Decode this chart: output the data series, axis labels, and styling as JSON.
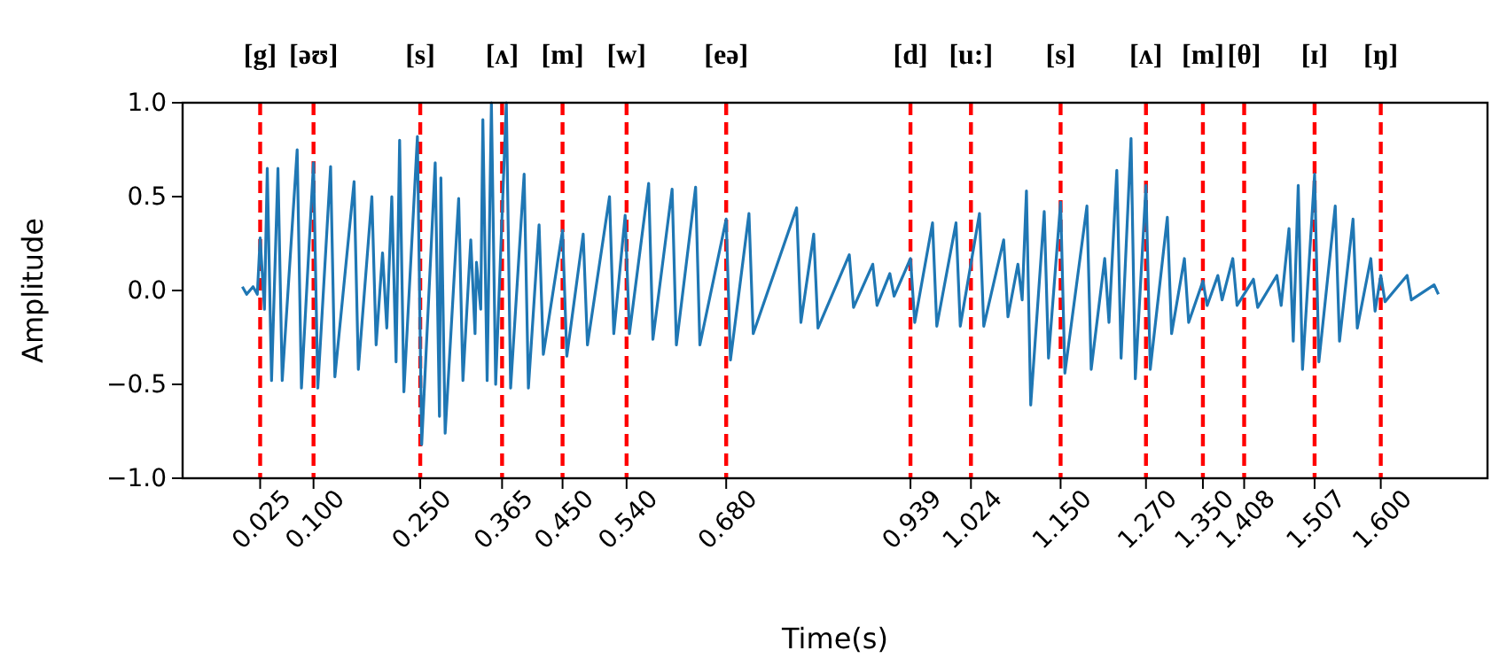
{
  "chart_data": {
    "type": "line",
    "xlabel": "Time(s)",
    "ylabel": "Amplitude",
    "xlim": [
      -0.084,
      1.75
    ],
    "ylim": [
      -1,
      1
    ],
    "xticks": [
      0.025,
      {
        "value": 0.1,
        "label": "0.100"
      },
      {
        "value": 0.25,
        "label": "0.250"
      },
      0.365,
      {
        "value": 0.45,
        "label": "0.450"
      },
      {
        "value": 0.54,
        "label": "0.540"
      },
      {
        "value": 0.68,
        "label": "0.680"
      },
      0.939,
      1.024,
      {
        "value": 1.15,
        "label": "1.150"
      },
      {
        "value": 1.27,
        "label": "1.270"
      },
      {
        "value": 1.35,
        "label": "1.350"
      },
      1.408,
      1.507,
      {
        "value": 1.6,
        "label": "1.600"
      }
    ],
    "yticks": [
      {
        "value": -1,
        "label": "−1.0"
      },
      {
        "value": -0.5,
        "label": "−0.5"
      },
      {
        "value": 0,
        "label": "0.0"
      },
      {
        "value": 0.5,
        "label": "0.5"
      },
      {
        "value": 1,
        "label": "1.0"
      }
    ],
    "series": [
      {
        "color": "#1f77b4",
        "x": [
          0,
          0.006,
          0.015,
          0.021,
          0.025,
          0.031,
          0.035,
          0.041,
          0.05,
          0.056,
          0.077,
          0.083,
          0.1,
          0.106,
          0.124,
          0.13,
          0.157,
          0.163,
          0.182,
          0.188,
          0.197,
          0.203,
          0.21,
          0.216,
          0.221,
          0.227,
          0.246,
          0.252,
          0.271,
          0.277,
          0.279,
          0.285,
          0.304,
          0.31,
          0.321,
          0.327,
          0.329,
          0.335,
          0.338,
          0.344,
          0.35,
          0.356,
          0.371,
          0.377,
          0.396,
          0.402,
          0.417,
          0.423,
          0.45,
          0.456,
          0.479,
          0.485,
          0.516,
          0.522,
          0.538,
          0.544,
          0.571,
          0.577,
          0.604,
          0.61,
          0.637,
          0.643,
          0.68,
          0.686,
          0.712,
          0.718,
          0.779,
          0.785,
          0.803,
          0.809,
          0.853,
          0.859,
          0.886,
          0.892,
          0.91,
          0.916,
          0.939,
          0.945,
          0.97,
          0.976,
          1.003,
          1.009,
          1.036,
          1.042,
          1.07,
          1.076,
          1.09,
          1.096,
          1.102,
          1.108,
          1.127,
          1.133,
          1.15,
          1.156,
          1.187,
          1.193,
          1.212,
          1.218,
          1.229,
          1.235,
          1.249,
          1.255,
          1.27,
          1.276,
          1.3,
          1.306,
          1.324,
          1.33,
          1.35,
          1.356,
          1.371,
          1.377,
          1.392,
          1.398,
          1.421,
          1.427,
          1.454,
          1.46,
          1.471,
          1.477,
          1.484,
          1.49,
          1.507,
          1.513,
          1.536,
          1.542,
          1.561,
          1.567,
          1.586,
          1.592,
          1.6,
          1.606,
          1.637,
          1.643,
          1.675,
          1.681
        ],
        "values": [
          0.02,
          -0.02,
          0.02,
          -0.02,
          0.28,
          -0.1,
          0.65,
          -0.48,
          0.65,
          -0.48,
          0.75,
          -0.52,
          0.68,
          -0.52,
          0.66,
          -0.46,
          0.58,
          -0.42,
          0.5,
          -0.29,
          0.2,
          -0.2,
          0.5,
          -0.38,
          0.8,
          -0.54,
          0.82,
          -0.82,
          0.68,
          -0.67,
          0.6,
          -0.76,
          0.49,
          -0.48,
          0.27,
          -0.23,
          0.15,
          -0.1,
          0.91,
          -0.48,
          1,
          -0.5,
          1,
          -0.52,
          0.62,
          -0.52,
          0.35,
          -0.34,
          0.32,
          -0.35,
          0.3,
          -0.29,
          0.5,
          -0.23,
          0.4,
          -0.23,
          0.57,
          -0.26,
          0.54,
          -0.29,
          0.55,
          -0.29,
          0.38,
          -0.37,
          0.41,
          -0.23,
          0.44,
          -0.17,
          0.3,
          -0.2,
          0.19,
          -0.09,
          0.14,
          -0.08,
          0.09,
          -0.03,
          0.17,
          -0.17,
          0.36,
          -0.19,
          0.36,
          -0.19,
          0.41,
          -0.19,
          0.27,
          -0.14,
          0.14,
          -0.05,
          0.53,
          -0.61,
          0.42,
          -0.36,
          0.47,
          -0.44,
          0.45,
          -0.42,
          0.17,
          -0.17,
          0.64,
          -0.36,
          0.81,
          -0.47,
          0.56,
          -0.42,
          0.39,
          -0.23,
          0.17,
          -0.17,
          0.05,
          -0.08,
          0.08,
          -0.05,
          0.17,
          -0.08,
          0.06,
          -0.09,
          0.08,
          -0.08,
          0.33,
          -0.27,
          0.56,
          -0.42,
          0.62,
          -0.38,
          0.45,
          -0.27,
          0.38,
          -0.2,
          0.17,
          -0.11,
          0.08,
          -0.06,
          0.08,
          -0.05,
          0.03,
          -0.02
        ]
      }
    ],
    "ref_lines": [
      {
        "axis": "x",
        "value": 0.025,
        "label": "[g]",
        "color": "#ff0000",
        "line_style": "dashed"
      },
      {
        "axis": "x",
        "value": 0.1,
        "label": "[əʊ]",
        "color": "#ff0000",
        "line_style": "dashed"
      },
      {
        "axis": "x",
        "value": 0.25,
        "label": "[s]",
        "color": "#ff0000",
        "line_style": "dashed"
      },
      {
        "axis": "x",
        "value": 0.365,
        "label": "[ʌ]",
        "color": "#ff0000",
        "line_style": "dashed"
      },
      {
        "axis": "x",
        "value": 0.45,
        "label": "[m]",
        "color": "#ff0000",
        "line_style": "dashed"
      },
      {
        "axis": "x",
        "value": 0.54,
        "label": "[w]",
        "color": "#ff0000",
        "line_style": "dashed"
      },
      {
        "axis": "x",
        "value": 0.68,
        "label": "[eə]",
        "color": "#ff0000",
        "line_style": "dashed"
      },
      {
        "axis": "x",
        "value": 0.939,
        "label": "[d]",
        "color": "#ff0000",
        "line_style": "dashed"
      },
      {
        "axis": "x",
        "value": 1.024,
        "label": "[u:]",
        "color": "#ff0000",
        "line_style": "dashed"
      },
      {
        "axis": "x",
        "value": 1.15,
        "label": "[s]",
        "color": "#ff0000",
        "line_style": "dashed"
      },
      {
        "axis": "x",
        "value": 1.27,
        "label": "[ʌ]",
        "color": "#ff0000",
        "line_style": "dashed"
      },
      {
        "axis": "x",
        "value": 1.35,
        "label": "[m]",
        "color": "#ff0000",
        "line_style": "dashed"
      },
      {
        "axis": "x",
        "value": 1.408,
        "label": "[θ]",
        "color": "#ff0000",
        "line_style": "dashed"
      },
      {
        "axis": "x",
        "value": 1.507,
        "label": "[ɪ]",
        "color": "#ff0000",
        "line_style": "dashed"
      },
      {
        "axis": "x",
        "value": 1.6,
        "label": "[ŋ]",
        "color": "#ff0000",
        "line_style": "dashed"
      }
    ]
  }
}
